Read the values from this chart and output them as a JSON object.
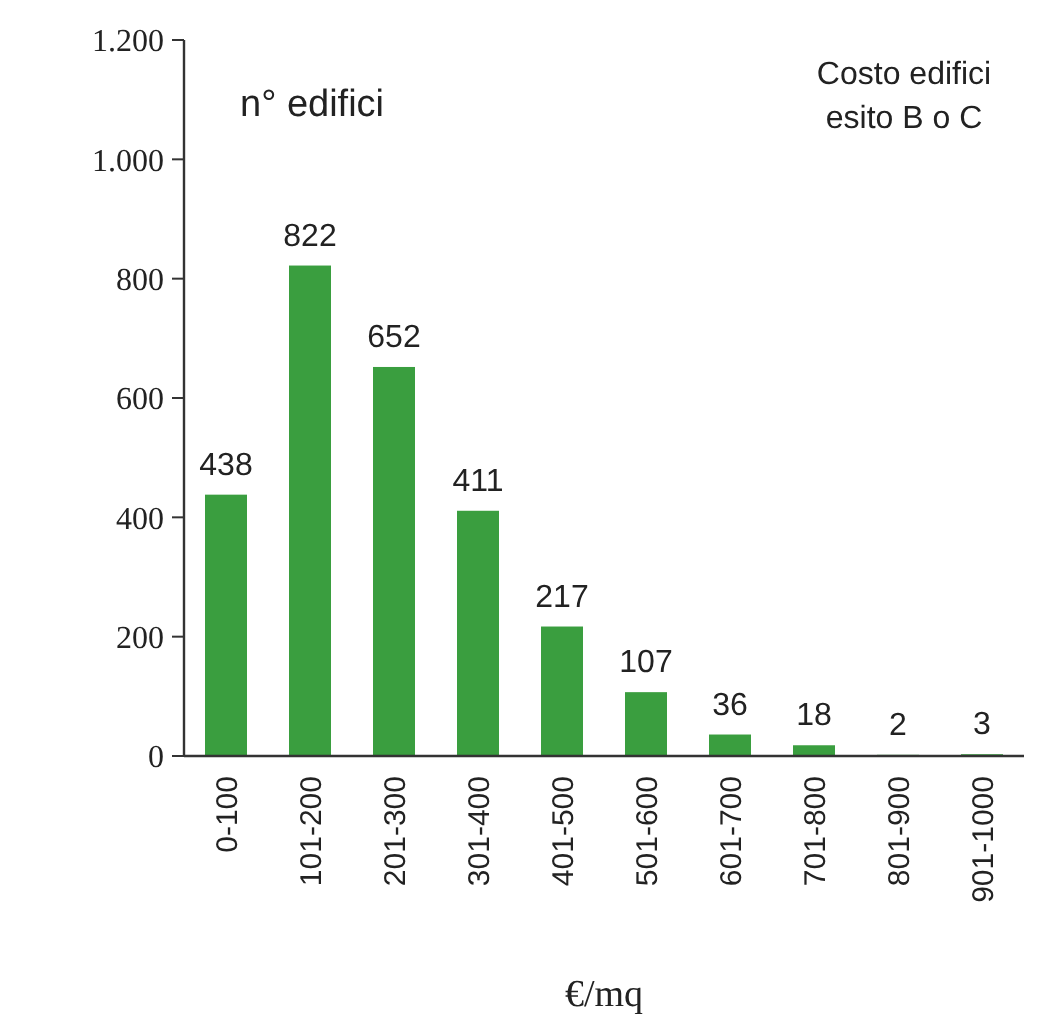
{
  "chart_data": {
    "type": "bar",
    "title": "Costo edifici esito B o C",
    "ylabel": "n° edifici",
    "xlabel": "€/mq",
    "categories": [
      "0-100",
      "101-200",
      "201-300",
      "301-400",
      "401-500",
      "501-600",
      "601-700",
      "701-800",
      "801-900",
      "901-1000"
    ],
    "values": [
      438,
      822,
      652,
      411,
      217,
      107,
      36,
      18,
      2,
      3
    ],
    "color": "#3a9e3f",
    "ylim": [
      0,
      1200
    ],
    "yticks": [
      0,
      200,
      400,
      600,
      800,
      {
        "value": 1000,
        "label": "1.000"
      },
      {
        "value": 1200,
        "label": "1.200"
      }
    ],
    "data_labels": true
  }
}
